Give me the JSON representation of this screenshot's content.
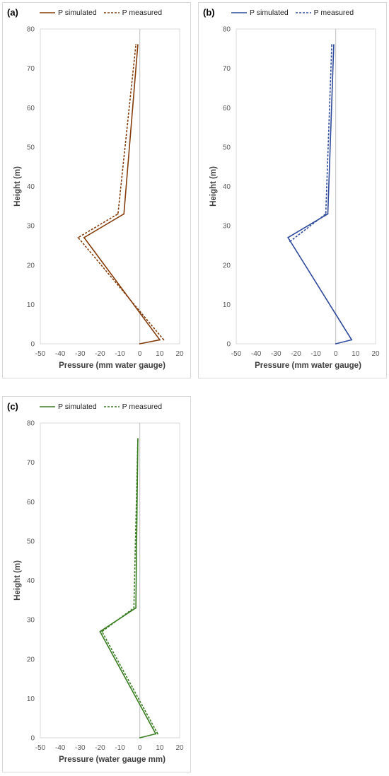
{
  "chart_data": [
    {
      "type": "line",
      "panel_label": "(a)",
      "xlabel": "Pressure (mm water gauge)",
      "ylabel": "Height (m)",
      "xlim": [
        -50,
        20
      ],
      "ylim": [
        0,
        80
      ],
      "xticks": [
        -50,
        -40,
        -30,
        -20,
        -10,
        0,
        10,
        20
      ],
      "yticks": [
        0,
        10,
        20,
        30,
        40,
        50,
        60,
        70,
        80
      ],
      "grid": false,
      "legend_position": "top",
      "color": "#843c0c",
      "series": [
        {
          "name": "P simulated",
          "style": "solid",
          "points": [
            [
              0,
              0
            ],
            [
              10,
              1
            ],
            [
              -28,
              27
            ],
            [
              -8,
              33
            ],
            [
              -1,
              76
            ]
          ]
        },
        {
          "name": "P measured",
          "style": "dashed",
          "points": [
            [
              12,
              1
            ],
            [
              -31,
              27
            ],
            [
              -11,
              33
            ],
            [
              -2,
              76
            ]
          ]
        }
      ]
    },
    {
      "type": "line",
      "panel_label": "(b)",
      "xlabel": "Pressure (mm water gauge)",
      "ylabel": "Height (m)",
      "xlim": [
        -50,
        20
      ],
      "ylim": [
        0,
        80
      ],
      "xticks": [
        -50,
        -40,
        -30,
        -20,
        -10,
        0,
        10,
        20
      ],
      "yticks": [
        0,
        10,
        20,
        30,
        40,
        50,
        60,
        70,
        80
      ],
      "grid": false,
      "legend_position": "top",
      "color": "#2f4b9a",
      "series": [
        {
          "name": "P simulated",
          "style": "solid",
          "points": [
            [
              0,
              0
            ],
            [
              8,
              1
            ],
            [
              -24,
              27
            ],
            [
              -4,
              33
            ],
            [
              -1,
              76
            ]
          ]
        },
        {
          "name": "P measured",
          "style": "dashed",
          "points": [
            [
              -23,
              26
            ],
            [
              -5,
              33
            ],
            [
              -2,
              76
            ]
          ]
        }
      ]
    },
    {
      "type": "line",
      "panel_label": "(c)",
      "xlabel": "Pressure (water gauge mm)",
      "ylabel": "Height  (m)",
      "xlim": [
        -50,
        20
      ],
      "ylim": [
        0,
        80
      ],
      "xticks": [
        -50,
        -40,
        -30,
        -20,
        -10,
        0,
        10,
        20
      ],
      "yticks": [
        0,
        10,
        20,
        30,
        40,
        50,
        60,
        70,
        80
      ],
      "grid": false,
      "legend_position": "top",
      "color": "#3a7d22",
      "series": [
        {
          "name": "P simulated",
          "style": "solid",
          "points": [
            [
              0,
              0
            ],
            [
              8,
              1
            ],
            [
              -20,
              27
            ],
            [
              -2,
              33
            ],
            [
              -1,
              76
            ]
          ]
        },
        {
          "name": "P measured",
          "style": "dashed",
          "points": [
            [
              9,
              1
            ],
            [
              -19,
              27
            ],
            [
              -3,
              33
            ],
            [
              -1,
              76
            ]
          ]
        }
      ]
    }
  ]
}
